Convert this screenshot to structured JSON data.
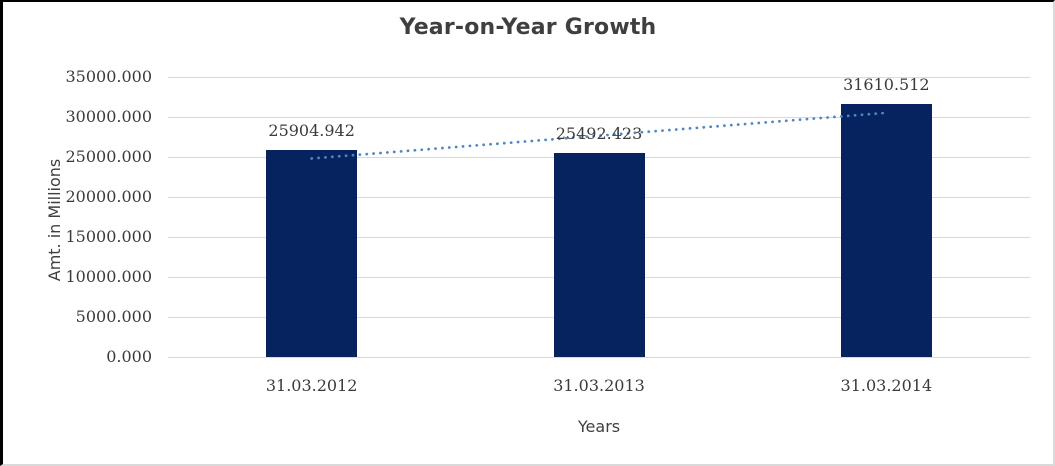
{
  "window": {
    "background": "#ffffff"
  },
  "chart_data": {
    "type": "bar",
    "title": "Year-on-Year Growth",
    "categories": [
      "31.03.2012",
      "31.03.2013",
      "31.03.2014"
    ],
    "values": [
      25904.942,
      25492.423,
      31610.512
    ],
    "data_labels": [
      "25904.942",
      "25492.423",
      "31610.512"
    ],
    "xlabel": "Years",
    "ylabel": "Amt. in Millions",
    "ylim": [
      0,
      35000
    ],
    "ytick_step": 5000,
    "ytick_labels": [
      "35000.000",
      "30000.000",
      "25000.000",
      "20000.000",
      "15000.000",
      "10000.000",
      "5000.000",
      "0.000"
    ],
    "grid": true,
    "legend": false,
    "trendline": {
      "type": "linear",
      "style": "dotted"
    },
    "colors": {
      "bar": "#06235f",
      "trendline": "#4f86c6",
      "gridline": "#d9d9d9",
      "title_text": "#3f3f3f",
      "axis_text": "#3b3b3b"
    }
  }
}
